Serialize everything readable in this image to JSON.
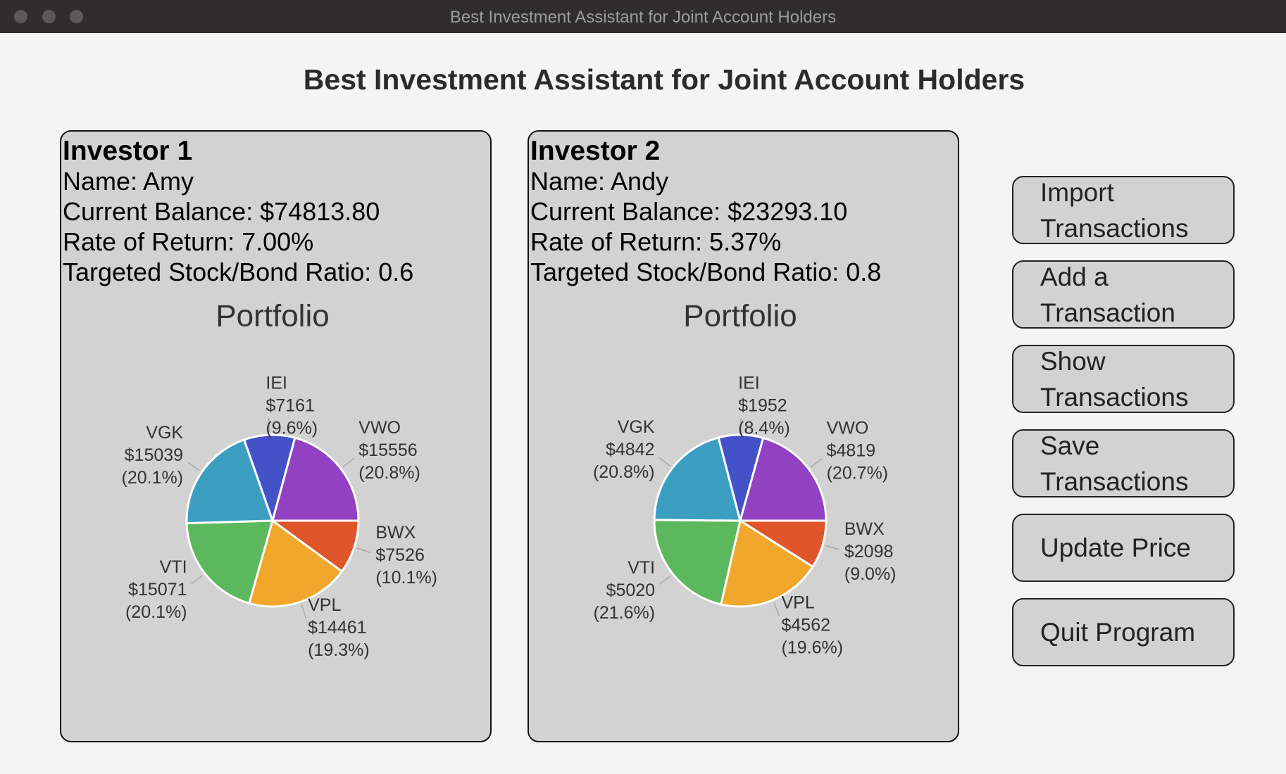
{
  "window_title": "Best Investment Assistant for Joint Account Holders",
  "header": {
    "title": "Best Investment Assistant for Joint Account Holders"
  },
  "investors": [
    {
      "label": "Investor 1",
      "name": "Name: Amy",
      "balance": "Current Balance: $74813.80",
      "rate": "Rate of Return: 7.00%",
      "ratio": "Targeted Stock/Bond Ratio: 0.6"
    },
    {
      "label": "Investor 2",
      "name": "Name: Andy",
      "balance": "Current Balance: $23293.10",
      "rate": "Rate of Return: 5.37%",
      "ratio": "Targeted Stock/Bond Ratio: 0.8"
    }
  ],
  "chart_data": [
    {
      "type": "pie",
      "title": "Portfolio",
      "categories": [
        "BWX",
        "VPL",
        "VTI",
        "VGK",
        "IEI",
        "VWO"
      ],
      "values": [
        7526,
        14461,
        15071,
        15039,
        7161,
        15556
      ],
      "value_labels": [
        "$7526",
        "$14461",
        "$15071",
        "$15039",
        "$7161",
        "$15556"
      ],
      "percent_labels": [
        "(10.1%)",
        "(19.3%)",
        "(20.1%)",
        "(20.1%)",
        "(9.6%)",
        "(20.8%)"
      ],
      "colors": [
        "#e0562a",
        "#f0a72c",
        "#5cb85c",
        "#3c9fc2",
        "#4452c8",
        "#9141c2"
      ]
    },
    {
      "type": "pie",
      "title": "Portfolio",
      "categories": [
        "BWX",
        "VPL",
        "VTI",
        "VGK",
        "IEI",
        "VWO"
      ],
      "values": [
        2098,
        4562,
        5020,
        4842,
        1952,
        4819
      ],
      "value_labels": [
        "$2098",
        "$4562",
        "$5020",
        "$4842",
        "$1952",
        "$4819"
      ],
      "percent_labels": [
        "(9.0%)",
        "(19.6%)",
        "(21.6%)",
        "(20.8%)",
        "(8.4%)",
        "(20.7%)"
      ],
      "colors": [
        "#e0562a",
        "#f0a72c",
        "#5cb85c",
        "#3c9fc2",
        "#4452c8",
        "#9141c2"
      ]
    }
  ],
  "buttons": [
    "Import Transactions",
    "Add a Transaction",
    "Show Transactions",
    "Save Transactions",
    "Update Price",
    "Quit Program"
  ]
}
